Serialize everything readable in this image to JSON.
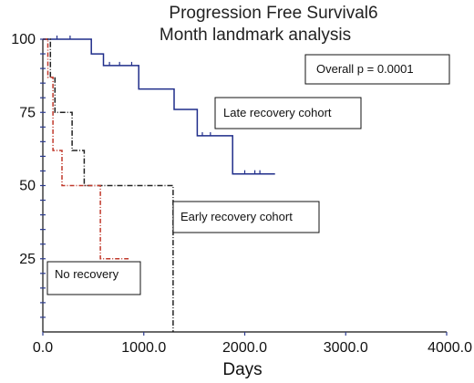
{
  "chart_data": {
    "type": "line",
    "title_lines": [
      "Progression Free Survival6",
      "Month landmark analysis"
    ],
    "xlabel": "Days",
    "ylabel": "",
    "xlim": [
      0,
      4000
    ],
    "ylim": [
      0,
      100
    ],
    "x_ticks": [
      0,
      1000,
      2000,
      3000,
      4000
    ],
    "x_tick_labels": [
      "0.0",
      "1000.0",
      "2000.0",
      "3000.0",
      "4000.0"
    ],
    "y_ticks": [
      25,
      50,
      75,
      100
    ],
    "y_tick_labels": [
      "25",
      "50",
      "75",
      "100"
    ],
    "grid": false,
    "annotations": [
      {
        "text": "Overall p = 0.0001"
      },
      {
        "text": "Late recovery cohort"
      },
      {
        "text": "Early recovery cohort"
      },
      {
        "text": "No recovery"
      }
    ],
    "series": [
      {
        "label": "Late recovery cohort",
        "color": "#1f2d8a",
        "dash": "",
        "steps": [
          [
            0,
            100
          ],
          [
            480,
            100
          ],
          [
            480,
            95
          ],
          [
            600,
            95
          ],
          [
            600,
            91
          ],
          [
            950,
            91
          ],
          [
            950,
            83
          ],
          [
            1300,
            83
          ],
          [
            1300,
            76
          ],
          [
            1530,
            76
          ],
          [
            1530,
            67
          ],
          [
            1880,
            67
          ],
          [
            1880,
            54
          ],
          [
            2300,
            54
          ]
        ],
        "censors": [
          [
            140,
            100
          ],
          [
            270,
            100
          ],
          [
            660,
            91
          ],
          [
            760,
            91
          ],
          [
            880,
            91
          ],
          [
            1580,
            67
          ],
          [
            1660,
            67
          ],
          [
            2000,
            54
          ],
          [
            2100,
            54
          ],
          [
            2150,
            54
          ]
        ]
      },
      {
        "label": "Early recovery cohort",
        "color": "#222222",
        "dash": "6,2,1,2",
        "steps": [
          [
            0,
            100
          ],
          [
            75,
            100
          ],
          [
            75,
            87
          ],
          [
            120,
            87
          ],
          [
            120,
            75
          ],
          [
            290,
            75
          ],
          [
            290,
            62
          ],
          [
            410,
            62
          ],
          [
            410,
            50
          ],
          [
            1290,
            50
          ],
          [
            1290,
            0
          ]
        ],
        "censors": []
      },
      {
        "label": "No recovery",
        "color": "#c0392b",
        "dash": "5,2,1,2",
        "steps": [
          [
            0,
            100
          ],
          [
            50,
            100
          ],
          [
            50,
            87
          ],
          [
            100,
            87
          ],
          [
            100,
            62
          ],
          [
            190,
            62
          ],
          [
            190,
            50
          ],
          [
            570,
            50
          ],
          [
            570,
            25
          ],
          [
            850,
            25
          ]
        ],
        "censors": []
      }
    ]
  }
}
